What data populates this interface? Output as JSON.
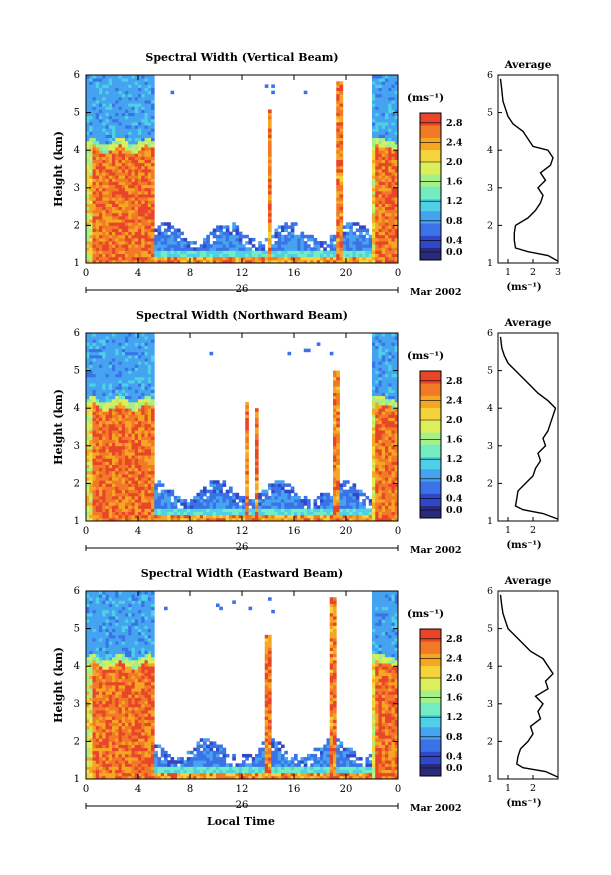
{
  "figure": {
    "xlabel": "Local Time",
    "date_text": "Mar 2002",
    "date_day": "26",
    "colorbar_unit": "(ms⁻¹)",
    "average_title": "Average",
    "average_xlabel": "(ms⁻¹)",
    "colorscale": [
      "#2a2a7a",
      "#2f47c8",
      "#3b72e8",
      "#45a3f0",
      "#4ed1e6",
      "#72ecc0",
      "#a6f08a",
      "#dcee5a",
      "#f5d33a",
      "#f5a623",
      "#f27a26",
      "#e8452a"
    ]
  },
  "chart_data": [
    {
      "type": "heatmap",
      "title": "Spectral Width (Vertical Beam)",
      "ylabel": "Height (km)",
      "xlim": [
        0,
        24
      ],
      "ylim": [
        1,
        6
      ],
      "xticks": [
        "0",
        "4",
        "8",
        "12",
        "16",
        "20",
        "0"
      ],
      "yticks": [
        "1",
        "2",
        "3",
        "4",
        "5",
        "6"
      ],
      "colorbar_ticks": [
        "0.0",
        "0.4",
        "0.8",
        "1.2",
        "1.6",
        "2.0",
        "2.4",
        "2.8"
      ],
      "colorbar_range": [
        0,
        3.0
      ],
      "average_profile": {
        "xlim": [
          0.6,
          3.0
        ],
        "xticks": [
          "1",
          "2",
          "3"
        ],
        "height": [
          1.05,
          1.2,
          1.3,
          1.4,
          1.6,
          1.8,
          2.0,
          2.2,
          2.4,
          2.6,
          2.8,
          3.0,
          3.2,
          3.4,
          3.6,
          3.8,
          4.0,
          4.1,
          4.3,
          4.5,
          4.7,
          4.9,
          5.1,
          5.3,
          5.6,
          5.9
        ],
        "value": [
          3.0,
          2.6,
          1.8,
          1.3,
          1.25,
          1.25,
          1.3,
          1.8,
          2.1,
          2.3,
          2.4,
          2.2,
          2.5,
          2.3,
          2.7,
          2.8,
          2.6,
          2.0,
          1.8,
          1.6,
          1.2,
          1.0,
          0.9,
          0.8,
          0.75,
          0.7
        ]
      }
    },
    {
      "type": "heatmap",
      "title": "Spectral Width (Northward Beam)",
      "ylabel": "Height (km)",
      "xlim": [
        0,
        24
      ],
      "ylim": [
        1,
        6
      ],
      "xticks": [
        "0",
        "4",
        "8",
        "12",
        "16",
        "20",
        "0"
      ],
      "yticks": [
        "1",
        "2",
        "3",
        "4",
        "5",
        "6"
      ],
      "colorbar_ticks": [
        "0.0",
        "0.4",
        "0.8",
        "1.2",
        "1.6",
        "2.0",
        "2.4",
        "2.8"
      ],
      "colorbar_range": [
        0,
        3.0
      ],
      "average_profile": {
        "xlim": [
          0.6,
          3.0
        ],
        "xticks": [
          "1",
          "2"
        ],
        "height": [
          1.05,
          1.2,
          1.3,
          1.4,
          1.6,
          1.8,
          2.0,
          2.2,
          2.4,
          2.6,
          2.8,
          3.0,
          3.2,
          3.4,
          3.6,
          3.8,
          4.0,
          4.2,
          4.4,
          4.6,
          4.8,
          5.0,
          5.2,
          5.4,
          5.6,
          5.9
        ],
        "value": [
          3.0,
          2.4,
          1.6,
          1.3,
          1.35,
          1.4,
          1.7,
          2.0,
          2.1,
          2.3,
          2.2,
          2.5,
          2.4,
          2.6,
          2.7,
          2.8,
          2.9,
          2.6,
          2.2,
          1.9,
          1.6,
          1.3,
          1.0,
          0.85,
          0.75,
          0.7
        ]
      }
    },
    {
      "type": "heatmap",
      "title": "Spectral Width (Eastward Beam)",
      "ylabel": "Height (km)",
      "xlim": [
        0,
        24
      ],
      "ylim": [
        1,
        6
      ],
      "xticks": [
        "0",
        "4",
        "8",
        "12",
        "16",
        "20",
        "0"
      ],
      "yticks": [
        "1",
        "2",
        "3",
        "4",
        "5",
        "6"
      ],
      "colorbar_ticks": [
        "0.0",
        "0.4",
        "0.8",
        "1.2",
        "1.6",
        "2.0",
        "2.4",
        "2.8"
      ],
      "colorbar_range": [
        0,
        3.0
      ],
      "average_profile": {
        "xlim": [
          0.6,
          3.0
        ],
        "xticks": [
          "1",
          "2"
        ],
        "height": [
          1.05,
          1.2,
          1.3,
          1.4,
          1.6,
          1.8,
          2.0,
          2.2,
          2.4,
          2.6,
          2.8,
          3.0,
          3.2,
          3.4,
          3.6,
          3.8,
          4.0,
          4.2,
          4.4,
          4.6,
          4.8,
          5.0,
          5.2,
          5.4,
          5.6,
          5.9
        ],
        "value": [
          3.0,
          2.5,
          1.6,
          1.35,
          1.4,
          1.5,
          1.8,
          2.0,
          1.9,
          2.3,
          2.2,
          2.4,
          2.1,
          2.6,
          2.5,
          2.8,
          2.6,
          2.4,
          1.9,
          1.6,
          1.3,
          1.0,
          0.9,
          0.8,
          0.75,
          0.7
        ]
      }
    }
  ]
}
